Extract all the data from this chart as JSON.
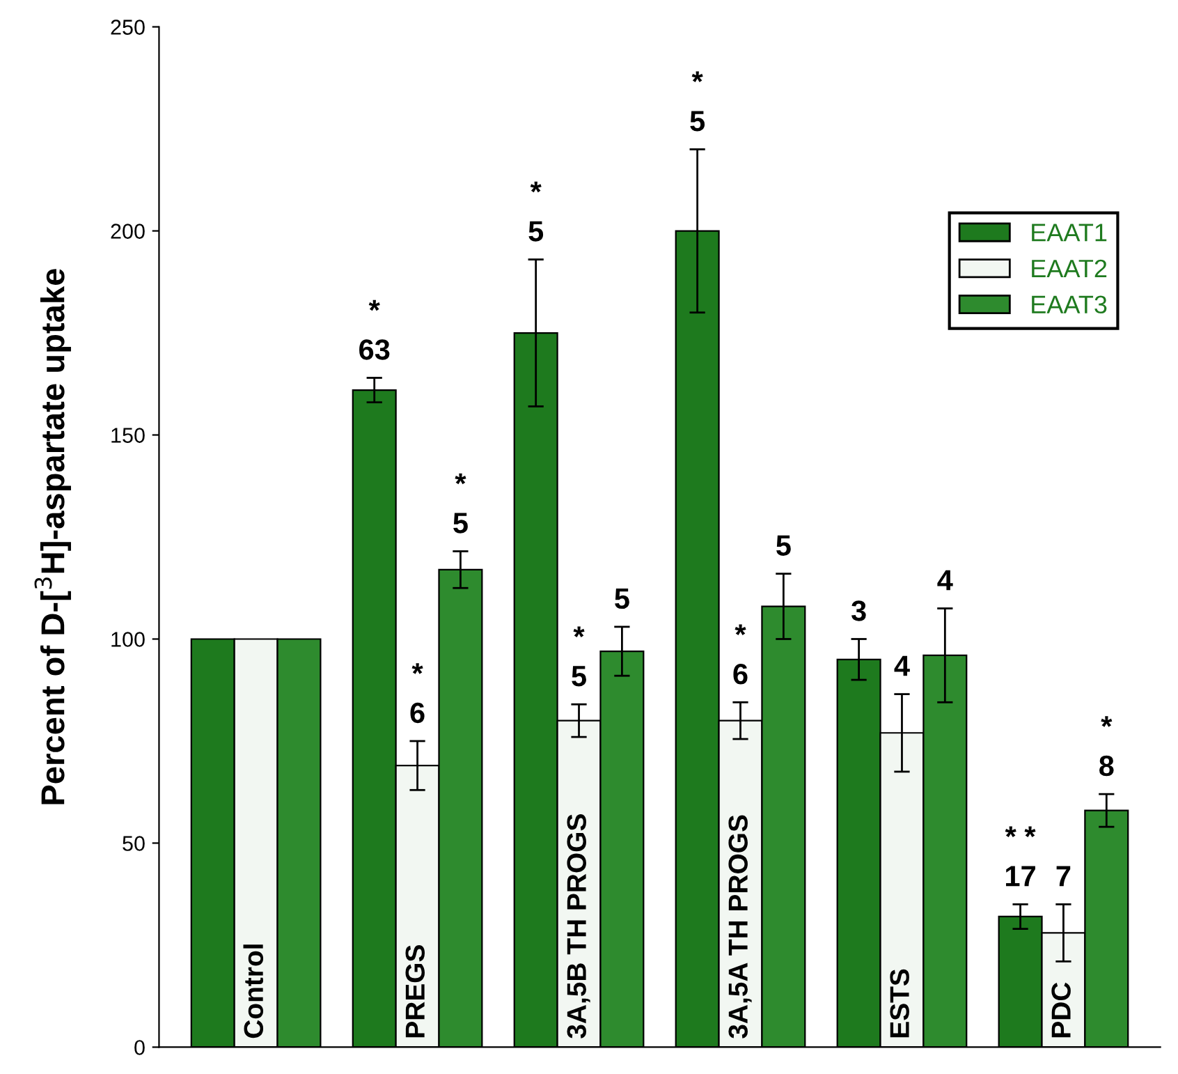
{
  "chart_data": {
    "type": "bar",
    "ylabel": "Percent of D-[$^{3}$H]-aspartate uptake",
    "categories": [
      "Control",
      "PREGS",
      "3A,5B TH PROGS",
      "3A,5A TH PROGS",
      "ESTS",
      "PDC"
    ],
    "series": [
      {
        "name": "EAAT1",
        "color": "#1e7a1e",
        "values": [
          100,
          161,
          175,
          200,
          95,
          32
        ],
        "errors": [
          null,
          3,
          18,
          20,
          5,
          3
        ]
      },
      {
        "name": "EAAT2",
        "color": "#f2f7f2",
        "values": [
          100,
          69,
          80,
          80,
          77,
          28
        ],
        "errors": [
          null,
          6,
          4,
          4.5,
          9.5,
          7
        ]
      },
      {
        "name": "EAAT3",
        "color": "#2e8b2e",
        "values": [
          100,
          117,
          97,
          108,
          96,
          58
        ],
        "errors": [
          null,
          4.5,
          6,
          8,
          11.5,
          4
        ]
      }
    ],
    "annotations": [
      "*\n63",
      "*\n6",
      "*\n5",
      "*\n5",
      "*\n5",
      "5",
      "*\n5",
      "*\n6",
      "5",
      "3",
      "4",
      "4",
      "* *\n17",
      "7",
      "*\n8"
    ],
    "ylim": [
      0,
      250
    ],
    "yticks": [
      0,
      50,
      100,
      150,
      200,
      250
    ],
    "grid": false,
    "legend": "top right"
  }
}
